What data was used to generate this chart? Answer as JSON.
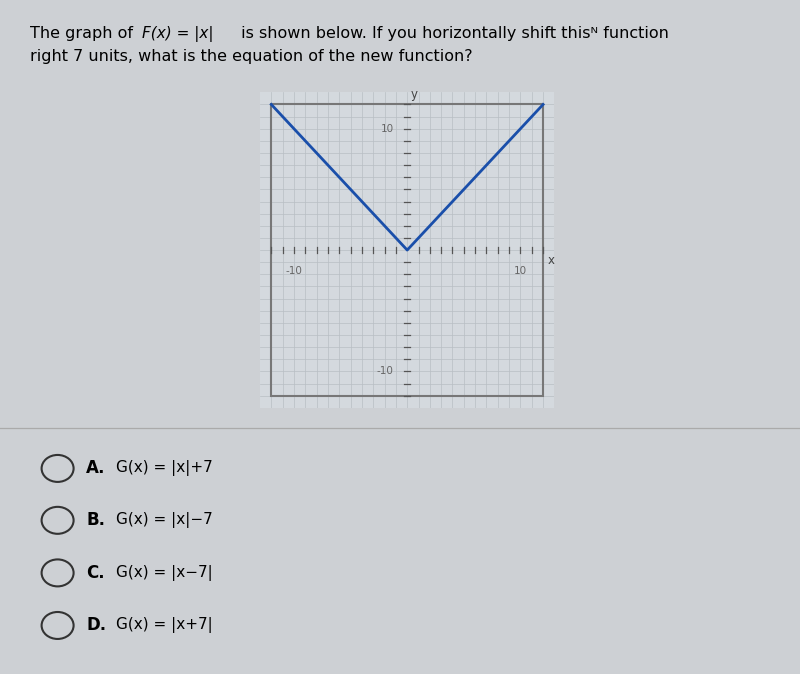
{
  "xlim": [
    -13,
    13
  ],
  "ylim": [
    -13,
    13
  ],
  "grid_color": "#b8bec4",
  "axis_color": "#555555",
  "plot_color": "#1a4faa",
  "plot_linewidth": 2.0,
  "graph_bg": "#d4d9de",
  "outer_bg": "#cdd0d4",
  "box_border_color": "#777777",
  "separator_color": "#aaaaaa",
  "title_part1": "The graph of ",
  "title_fx": "F(x) = |x|",
  "title_part2": " is shown below. If you horizontally shift thisⁿ function",
  "title_line2": "right 7 units, what is the equation of the new function?",
  "choice_labels": [
    "A.",
    "B.",
    "C.",
    "D."
  ],
  "choice_exprs": [
    "G(x) = |x|+7",
    "G(x) = |x|−7",
    "G(x) = |x−7|",
    "G(x) = |x+7|"
  ]
}
